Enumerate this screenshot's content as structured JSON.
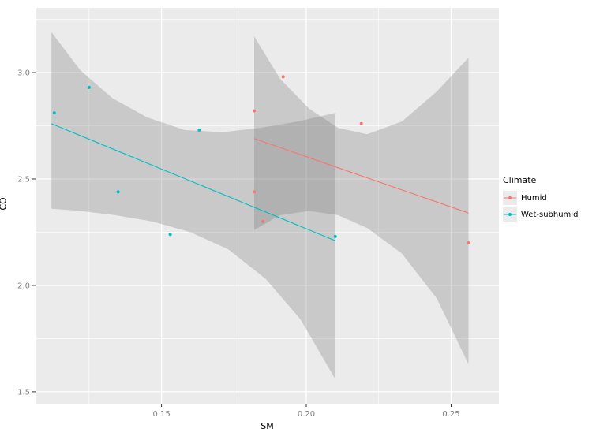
{
  "figure": {
    "background": "#FFFFFF",
    "panel_background": "#EBEBEB",
    "grid_color": "#FFFFFF",
    "band_color": "#737373",
    "band_opacity": 0.28,
    "tick_color": "#333333",
    "tick_label_color": "#7F7F7F"
  },
  "chart_data": {
    "type": "scatter",
    "title": "",
    "xlabel": "SM",
    "ylabel": "CO",
    "legend_title": "Climate",
    "legend_position": "right",
    "grid": true,
    "xlim": [
      0.1065,
      0.2665
    ],
    "ylim": [
      1.444,
      3.304
    ],
    "xticks": [
      0.15,
      0.2,
      0.25
    ],
    "xtick_labels": [
      "0.15",
      "0.20",
      "0.25"
    ],
    "yticks": [
      1.5,
      2.0,
      2.5,
      3.0
    ],
    "ytick_labels": [
      "1.5",
      "2.0",
      "2.5",
      "3.0"
    ],
    "x_minor": [
      0.125,
      0.175,
      0.225
    ],
    "y_minor": [
      1.75,
      2.25,
      2.75,
      3.25
    ],
    "series": [
      {
        "name": "Humid",
        "color": "#F8766D",
        "points": [
          [
            0.182,
            2.82
          ],
          [
            0.192,
            2.98
          ],
          [
            0.182,
            2.44
          ],
          [
            0.185,
            2.3
          ],
          [
            0.219,
            2.76
          ],
          [
            0.256,
            2.2
          ]
        ],
        "trend": [
          [
            0.182,
            2.69
          ],
          [
            0.256,
            2.34
          ]
        ],
        "ci_polygon": [
          [
            0.182,
            3.17
          ],
          [
            0.191,
            2.97
          ],
          [
            0.201,
            2.83
          ],
          [
            0.211,
            2.74
          ],
          [
            0.221,
            2.71
          ],
          [
            0.233,
            2.77
          ],
          [
            0.245,
            2.91
          ],
          [
            0.256,
            3.07
          ],
          [
            0.256,
            1.63
          ],
          [
            0.245,
            1.94
          ],
          [
            0.233,
            2.15
          ],
          [
            0.221,
            2.27
          ],
          [
            0.211,
            2.33
          ],
          [
            0.201,
            2.35
          ],
          [
            0.191,
            2.33
          ],
          [
            0.182,
            2.26
          ]
        ]
      },
      {
        "name": "Wet-subhumid",
        "color": "#00BFC4",
        "points": [
          [
            0.113,
            2.81
          ],
          [
            0.125,
            2.93
          ],
          [
            0.135,
            2.44
          ],
          [
            0.153,
            2.24
          ],
          [
            0.163,
            2.73
          ],
          [
            0.21,
            2.23
          ]
        ],
        "trend": [
          [
            0.112,
            2.76
          ],
          [
            0.21,
            2.21
          ]
        ],
        "ci_polygon": [
          [
            0.112,
            3.19
          ],
          [
            0.122,
            3.01
          ],
          [
            0.133,
            2.88
          ],
          [
            0.145,
            2.79
          ],
          [
            0.158,
            2.73
          ],
          [
            0.171,
            2.72
          ],
          [
            0.184,
            2.74
          ],
          [
            0.197,
            2.77
          ],
          [
            0.21,
            2.81
          ],
          [
            0.21,
            1.56
          ],
          [
            0.198,
            1.84
          ],
          [
            0.186,
            2.03
          ],
          [
            0.173,
            2.17
          ],
          [
            0.16,
            2.25
          ],
          [
            0.147,
            2.3
          ],
          [
            0.134,
            2.33
          ],
          [
            0.122,
            2.35
          ],
          [
            0.112,
            2.36
          ]
        ]
      }
    ]
  }
}
